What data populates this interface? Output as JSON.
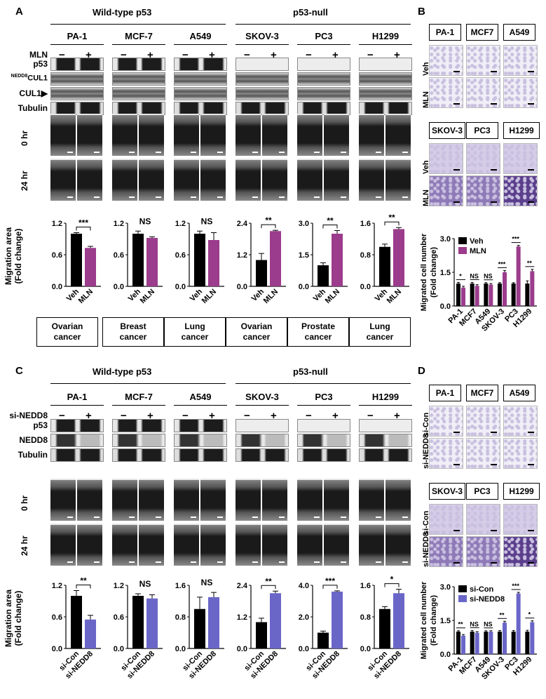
{
  "panels": {
    "A": "A",
    "B": "B",
    "C": "C",
    "D": "D",
    "wild_type": "Wild-type p53",
    "p53_null": "p53-null"
  },
  "cell_lines": [
    "PA-1",
    "MCF-7",
    "A549",
    "SKOV-3",
    "PC3",
    "H1299"
  ],
  "cell_lines_transwell_top": [
    "PA-1",
    "MCF7",
    "A549"
  ],
  "cell_lines_transwell_bottom": [
    "SKOV-3",
    "PC3",
    "H1299"
  ],
  "treat_A": "MLN",
  "treat_C": "si-NEDD8",
  "minus": "−",
  "plus": "+",
  "blot_rows_A": [
    "p53",
    "NEDD8CUL1▶",
    "CUL1▶",
    "Tubulin"
  ],
  "nedd8_super": "NEDD8",
  "cul1": "CUL1",
  "blot_rows_C": [
    "p53",
    "NEDD8",
    "Tubulin"
  ],
  "time_labels": [
    "0 hr",
    "24 hr"
  ],
  "transwell_rows_B": [
    "Veh",
    "MLN"
  ],
  "transwell_rows_D": [
    "si-Con",
    "si-NEDD8"
  ],
  "cancers": [
    "Ovarian\ncancer",
    "Breast\ncancer",
    "Lung\ncancer",
    "Ovarian\ncancer",
    "Prostate\ncancer",
    "Lung\ncancer"
  ],
  "cancer_lines": [
    [
      "Ovarian",
      "cancer"
    ],
    [
      "Breast",
      "cancer"
    ],
    [
      "Lung",
      "cancer"
    ],
    [
      "Ovarian",
      "cancer"
    ],
    [
      "Prostate",
      "cancer"
    ],
    [
      "Lung",
      "cancer"
    ]
  ],
  "ylabel_migration": [
    "Migration area",
    "(Fold change)"
  ],
  "ylabel_migrated": [
    "Migrated cell number",
    "(Fold change)"
  ],
  "colors": {
    "ctrl": "#000000",
    "mln": "#9b3c8c",
    "sinedd8": "#6a66c8",
    "bg": "#ffffff"
  },
  "chart_data": [
    {
      "type": "bar",
      "panel": "A",
      "cell": "PA-1",
      "categories": [
        "Veh",
        "MLN"
      ],
      "values": [
        1.0,
        0.73
      ],
      "errors": [
        0.02,
        0.03
      ],
      "yticks": [
        "0.0",
        "0.6",
        "1.2"
      ],
      "ylim": [
        0,
        1.2
      ],
      "sig": "***",
      "bracket": true
    },
    {
      "type": "bar",
      "panel": "A",
      "cell": "MCF-7",
      "categories": [
        "Veh",
        "MLN"
      ],
      "values": [
        1.0,
        0.92
      ],
      "errors": [
        0.05,
        0.02
      ],
      "yticks": [
        "0.0",
        "0.6",
        "1.2"
      ],
      "ylim": [
        0,
        1.2
      ],
      "sig": "NS",
      "bracket": false
    },
    {
      "type": "bar",
      "panel": "A",
      "cell": "A549",
      "categories": [
        "Veh",
        "MLN"
      ],
      "values": [
        1.0,
        0.88
      ],
      "errors": [
        0.05,
        0.14
      ],
      "yticks": [
        "0.0",
        "0.6",
        "1.2"
      ],
      "ylim": [
        0,
        1.2
      ],
      "sig": "NS",
      "bracket": false
    },
    {
      "type": "bar",
      "panel": "A",
      "cell": "SKOV-3",
      "categories": [
        "Veh",
        "MLN"
      ],
      "values": [
        1.0,
        2.1
      ],
      "errors": [
        0.25,
        0.03
      ],
      "yticks": [
        "0.0",
        "1.2",
        "2.4"
      ],
      "ylim": [
        0,
        2.4
      ],
      "sig": "**",
      "bracket": true
    },
    {
      "type": "bar",
      "panel": "A",
      "cell": "PC3",
      "categories": [
        "Veh",
        "MLN"
      ],
      "values": [
        1.0,
        2.5
      ],
      "errors": [
        0.12,
        0.15
      ],
      "yticks": [
        "0.0",
        "1.5",
        "3.0"
      ],
      "ylim": [
        0,
        3.0
      ],
      "sig": "**",
      "bracket": true
    },
    {
      "type": "bar",
      "panel": "A",
      "cell": "H1299",
      "categories": [
        "Veh",
        "MLN"
      ],
      "values": [
        1.0,
        1.45
      ],
      "errors": [
        0.07,
        0.04
      ],
      "yticks": [
        "0.0",
        "0.8",
        "1.6"
      ],
      "ylim": [
        0,
        1.6
      ],
      "sig": "**",
      "bracket": true
    },
    {
      "type": "bar",
      "panel": "C",
      "cell": "PA-1",
      "categories": [
        "si-Con",
        "si-NEDD8"
      ],
      "values": [
        1.0,
        0.55
      ],
      "errors": [
        0.1,
        0.08
      ],
      "yticks": [
        "0.0",
        "0.6",
        "1.2"
      ],
      "ylim": [
        0,
        1.2
      ],
      "sig": "**",
      "bracket": true
    },
    {
      "type": "bar",
      "panel": "C",
      "cell": "MCF-7",
      "categories": [
        "si-Con",
        "si-NEDD8"
      ],
      "values": [
        1.0,
        0.95
      ],
      "errors": [
        0.04,
        0.07
      ],
      "yticks": [
        "0.0",
        "0.6",
        "1.2"
      ],
      "ylim": [
        0,
        1.2
      ],
      "sig": "NS",
      "bracket": false
    },
    {
      "type": "bar",
      "panel": "C",
      "cell": "A549",
      "categories": [
        "si-Con",
        "si-NEDD8"
      ],
      "values": [
        1.0,
        1.3
      ],
      "errors": [
        0.3,
        0.12
      ],
      "yticks": [
        "0.0",
        "0.8",
        "1.6"
      ],
      "ylim": [
        0,
        1.6
      ],
      "sig": "NS",
      "bracket": false
    },
    {
      "type": "bar",
      "panel": "C",
      "cell": "SKOV-3",
      "categories": [
        "si-Con",
        "si-NEDD8"
      ],
      "values": [
        1.0,
        2.1
      ],
      "errors": [
        0.15,
        0.08
      ],
      "yticks": [
        "0.0",
        "1.2",
        "2.4"
      ],
      "ylim": [
        0,
        2.4
      ],
      "sig": "**",
      "bracket": true
    },
    {
      "type": "bar",
      "panel": "C",
      "cell": "PC3",
      "categories": [
        "si-Con",
        "si-NEDD8"
      ],
      "values": [
        1.0,
        3.6
      ],
      "errors": [
        0.1,
        0.05
      ],
      "yticks": [
        "0.0",
        "2.0",
        "4.0"
      ],
      "ylim": [
        0,
        4.0
      ],
      "sig": "***",
      "bracket": true
    },
    {
      "type": "bar",
      "panel": "C",
      "cell": "H1299",
      "categories": [
        "si-Con",
        "si-NEDD8"
      ],
      "values": [
        1.0,
        1.4
      ],
      "errors": [
        0.06,
        0.1
      ],
      "yticks": [
        "0.0",
        "0.8",
        "1.6"
      ],
      "ylim": [
        0,
        1.6
      ],
      "sig": "*",
      "bracket": true
    },
    {
      "type": "bar",
      "panel": "B",
      "categories": [
        "PA-1",
        "MCF7",
        "A549",
        "SKOV-3",
        "PC3",
        "H1299"
      ],
      "series": [
        {
          "name": "Veh",
          "values": [
            1.0,
            1.0,
            1.0,
            1.0,
            1.0,
            1.0
          ],
          "errors": [
            0.05,
            0.05,
            0.04,
            0.04,
            0.04,
            0.12
          ]
        },
        {
          "name": "MLN",
          "values": [
            0.82,
            0.9,
            0.95,
            1.5,
            2.65,
            1.55
          ],
          "errors": [
            0.06,
            0.05,
            0.05,
            0.08,
            0.05,
            0.08
          ]
        }
      ],
      "sigs": [
        "*",
        "NS",
        "NS",
        "***",
        "***",
        "**"
      ],
      "yticks": [
        "0.0",
        "1.5",
        "3.0"
      ],
      "ylim": [
        0,
        3.0
      ]
    },
    {
      "type": "bar",
      "panel": "D",
      "categories": [
        "PA-1",
        "MCF7",
        "A549",
        "SKOV-3",
        "PC3",
        "H1299"
      ],
      "series": [
        {
          "name": "si-Con",
          "values": [
            1.0,
            1.0,
            1.0,
            1.0,
            1.0,
            1.0
          ],
          "errors": [
            0.04,
            0.05,
            0.04,
            0.05,
            0.05,
            0.06
          ]
        },
        {
          "name": "si-NEDD8",
          "values": [
            0.82,
            0.95,
            1.0,
            1.4,
            2.7,
            1.42
          ],
          "errors": [
            0.05,
            0.05,
            0.04,
            0.06,
            0.05,
            0.06
          ]
        }
      ],
      "sigs": [
        "**",
        "NS",
        "NS",
        "**",
        "***",
        "*"
      ],
      "yticks": [
        "0.0",
        "1.5",
        "3.0"
      ],
      "ylim": [
        0,
        3.0
      ]
    }
  ]
}
